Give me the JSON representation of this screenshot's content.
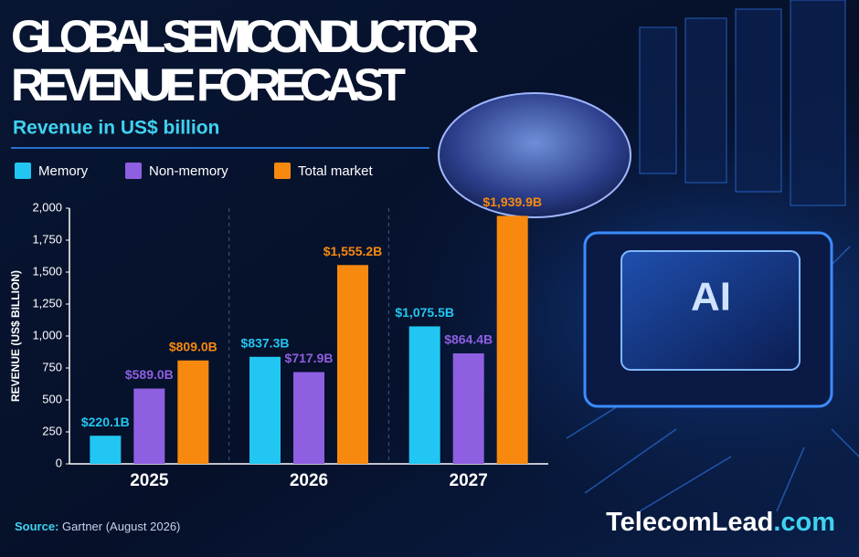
{
  "chart_data": {
    "type": "bar",
    "title_lines": [
      "GLOBAL SEMICONDUCTOR",
      "REVENUE FORECAST"
    ],
    "subtitle": "Revenue in US$ billion",
    "y_label": "REVENUE (US$ BILLION)",
    "categories": [
      "2025",
      "2026",
      "2027"
    ],
    "series": [
      {
        "name": "Memory",
        "color": "#22c6f2",
        "values": [
          220.1,
          837.3,
          1075.5
        ],
        "value_labels": [
          "$220.1B",
          "$837.3B",
          "$1,075.5B"
        ]
      },
      {
        "name": "Non-memory",
        "color": "#8f5fe2",
        "values": [
          589.0,
          717.9,
          864.4
        ],
        "value_labels": [
          "$589.0B",
          "$717.9B",
          "$864.4B"
        ]
      },
      {
        "name": "Total market",
        "color": "#f7890f",
        "values": [
          809.0,
          1555.2,
          1939.9
        ],
        "value_labels": [
          "$809.0B",
          "$1,555.2B",
          "$1,939.9B"
        ]
      }
    ],
    "ylim": [
      0,
      2000
    ],
    "yticks": [
      0,
      250,
      500,
      750,
      {
        "value": 1000,
        "label": "1,000"
      },
      {
        "value": 1250,
        "label": "1,250"
      },
      {
        "value": 1500,
        "label": "1,500"
      },
      {
        "value": 1750,
        "label": "1,750"
      },
      {
        "value": 2000,
        "label": "2,000"
      }
    ],
    "grid": false,
    "legend": "top-left",
    "source": {
      "label": "Source:",
      "text": "Gartner (August 2026)"
    },
    "brand": {
      "name": "TelecomLead",
      "suffix": ".com"
    },
    "chip_label": "AI"
  }
}
